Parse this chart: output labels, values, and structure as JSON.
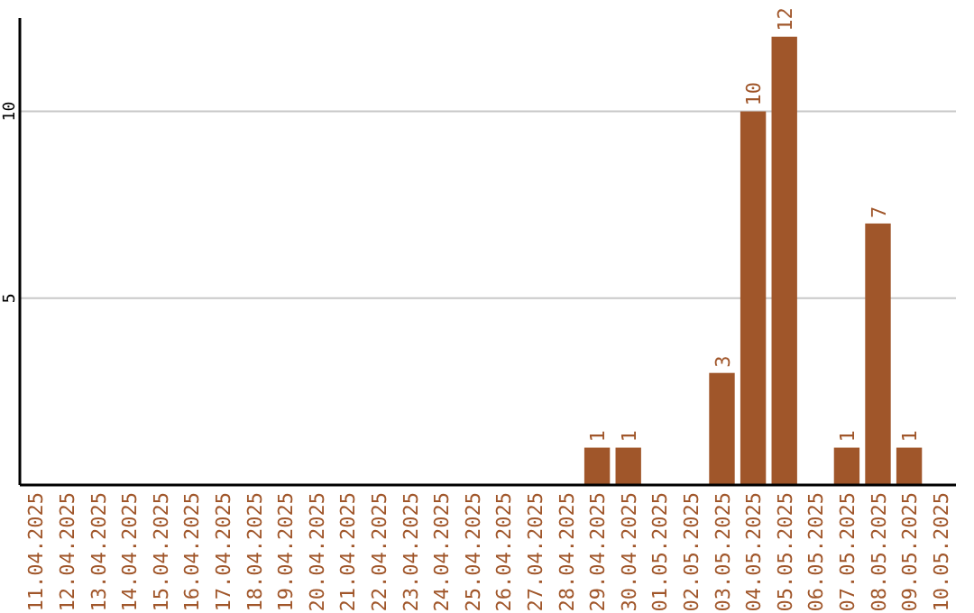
{
  "chart_data": {
    "type": "bar",
    "categories": [
      "11.04.2025",
      "12.04.2025",
      "13.04.2025",
      "14.04.2025",
      "15.04.2025",
      "16.04.2025",
      "17.04.2025",
      "18.04.2025",
      "19.04.2025",
      "20.04.2025",
      "21.04.2025",
      "22.04.2025",
      "23.04.2025",
      "24.04.2025",
      "25.04.2025",
      "26.04.2025",
      "27.04.2025",
      "28.04.2025",
      "29.04.2025",
      "30.04.2025",
      "01.05.2025",
      "02.05.2025",
      "03.05.2025",
      "04.05.2025",
      "05.05.2025",
      "06.05.2025",
      "07.05.2025",
      "08.05.2025",
      "09.05.2025",
      "10.05.2025"
    ],
    "values": [
      0,
      0,
      0,
      0,
      0,
      0,
      0,
      0,
      0,
      0,
      0,
      0,
      0,
      0,
      0,
      0,
      0,
      0,
      1,
      1,
      0,
      0,
      3,
      10,
      12,
      0,
      1,
      7,
      1,
      0
    ],
    "value_labels": [
      null,
      null,
      null,
      null,
      null,
      null,
      null,
      null,
      null,
      null,
      null,
      null,
      null,
      null,
      null,
      null,
      null,
      null,
      "1",
      "1",
      null,
      null,
      "3",
      "10",
      "12",
      null,
      "1",
      "7",
      "1",
      null
    ],
    "color": "#a0562a",
    "ylim": [
      0,
      12.5
    ],
    "yticks": [
      5,
      10
    ],
    "grid": "y"
  }
}
